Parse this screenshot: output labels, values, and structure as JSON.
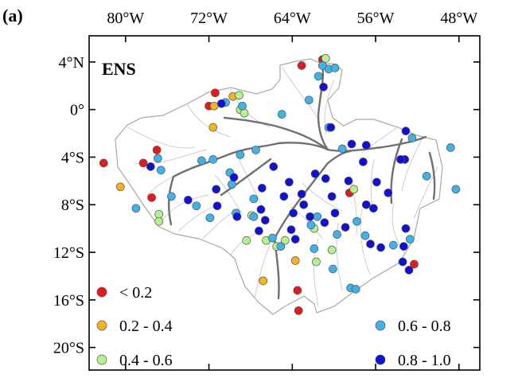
{
  "panel_label": "(a)",
  "metric": "ENS",
  "lon_ticks": [
    {
      "lon": -80,
      "label": "80°W"
    },
    {
      "lon": -72,
      "label": "72°W"
    },
    {
      "lon": -64,
      "label": "64°W"
    },
    {
      "lon": -56,
      "label": "56°W"
    },
    {
      "lon": -48,
      "label": "48°W"
    }
  ],
  "lat_ticks": [
    {
      "lat": 4,
      "label": "4°N"
    },
    {
      "lat": 0,
      "label": "0°"
    },
    {
      "lat": -4,
      "label": "4°S"
    },
    {
      "lat": -8,
      "label": "8°S"
    },
    {
      "lat": -12,
      "label": "12°S"
    },
    {
      "lat": -16,
      "label": "16°S"
    },
    {
      "lat": -20,
      "label": "20°S"
    }
  ],
  "extent": {
    "lon_min": -83.5,
    "lon_max": -46.0,
    "lat_min": -21.9,
    "lat_max": 6.2
  },
  "legend": [
    {
      "label": "< 0.2",
      "color": "#e41a1c"
    },
    {
      "label": "0.2 - 0.4",
      "color": "#f5b31c"
    },
    {
      "label": "0.4 - 0.6",
      "color": "#b8f08c"
    },
    {
      "label": "0.6 - 0.8",
      "color": "#3fb2e8"
    },
    {
      "label": "0.8 - 1.0",
      "color": "#1010d8"
    }
  ],
  "stations": [
    {
      "lon": -63.1,
      "lat": 3.7,
      "cls": 0
    },
    {
      "lon": -61.1,
      "lat": 4.2,
      "cls": 0
    },
    {
      "lon": -71.4,
      "lat": 1.4,
      "cls": 0
    },
    {
      "lon": -72.0,
      "lat": 0.3,
      "cls": 0
    },
    {
      "lon": -77.0,
      "lat": -3.4,
      "cls": 0
    },
    {
      "lon": -78.3,
      "lat": -4.5,
      "cls": 0
    },
    {
      "lon": -82.1,
      "lat": -4.5,
      "cls": 0
    },
    {
      "lon": -77.5,
      "lat": -7.4,
      "cls": 0
    },
    {
      "lon": -58.5,
      "lat": -7.0,
      "cls": 0
    },
    {
      "lon": -63.5,
      "lat": -15.2,
      "cls": 0
    },
    {
      "lon": -63.4,
      "lat": -16.9,
      "cls": 0
    },
    {
      "lon": -52.3,
      "lat": -13.0,
      "cls": 0
    },
    {
      "lon": -69.7,
      "lat": 1.1,
      "cls": 1
    },
    {
      "lon": -71.5,
      "lat": 0.3,
      "cls": 1
    },
    {
      "lon": -71.6,
      "lat": -1.5,
      "cls": 1
    },
    {
      "lon": -80.5,
      "lat": -6.5,
      "cls": 1
    },
    {
      "lon": -63.7,
      "lat": -12.7,
      "cls": 1
    },
    {
      "lon": -66.8,
      "lat": -14.4,
      "cls": 1
    },
    {
      "lon": -60.8,
      "lat": 4.3,
      "cls": 2
    },
    {
      "lon": -69.1,
      "lat": 1.2,
      "cls": 2
    },
    {
      "lon": -69.0,
      "lat": 0.0,
      "cls": 2
    },
    {
      "lon": -68.6,
      "lat": -0.3,
      "cls": 2
    },
    {
      "lon": -58.1,
      "lat": -6.7,
      "cls": 2
    },
    {
      "lon": -76.8,
      "lat": -8.8,
      "cls": 2
    },
    {
      "lon": -76.8,
      "lat": -9.4,
      "cls": 2
    },
    {
      "lon": -67.9,
      "lat": -8.9,
      "cls": 2
    },
    {
      "lon": -66.5,
      "lat": -11.0,
      "cls": 2
    },
    {
      "lon": -68.4,
      "lat": -11.0,
      "cls": 2
    },
    {
      "lon": -65.5,
      "lat": -11.5,
      "cls": 2
    },
    {
      "lon": -64.7,
      "lat": -11.0,
      "cls": 2
    },
    {
      "lon": -61.9,
      "lat": -10.0,
      "cls": 2
    },
    {
      "lon": -60.2,
      "lat": -11.8,
      "cls": 2
    },
    {
      "lon": -61.7,
      "lat": -12.8,
      "cls": 2
    },
    {
      "lon": -61.1,
      "lat": 3.7,
      "cls": 3
    },
    {
      "lon": -60.5,
      "lat": 3.4,
      "cls": 3
    },
    {
      "lon": -59.9,
      "lat": 3.5,
      "cls": 3
    },
    {
      "lon": -61.5,
      "lat": 2.8,
      "cls": 3
    },
    {
      "lon": -62.4,
      "lat": 0.8,
      "cls": 3
    },
    {
      "lon": -70.4,
      "lat": 0.6,
      "cls": 3
    },
    {
      "lon": -68.8,
      "lat": 0.3,
      "cls": 3
    },
    {
      "lon": -65.0,
      "lat": -0.4,
      "cls": 3
    },
    {
      "lon": -60.5,
      "lat": -1.5,
      "cls": 3
    },
    {
      "lon": -52.5,
      "lat": -2.4,
      "cls": 3
    },
    {
      "lon": -48.8,
      "lat": -3.2,
      "cls": 3
    },
    {
      "lon": -59.2,
      "lat": -3.3,
      "cls": 3
    },
    {
      "lon": -67.5,
      "lat": -3.4,
      "cls": 3
    },
    {
      "lon": -69.0,
      "lat": -3.8,
      "cls": 3
    },
    {
      "lon": -71.6,
      "lat": -4.2,
      "cls": 3
    },
    {
      "lon": -72.7,
      "lat": -4.3,
      "cls": 3
    },
    {
      "lon": -76.9,
      "lat": -4.1,
      "cls": 3
    },
    {
      "lon": -76.6,
      "lat": -5.1,
      "cls": 3
    },
    {
      "lon": -70.0,
      "lat": -5.3,
      "cls": 3
    },
    {
      "lon": -69.8,
      "lat": -6.3,
      "cls": 3
    },
    {
      "lon": -75.6,
      "lat": -7.3,
      "cls": 3
    },
    {
      "lon": -73.2,
      "lat": -8.1,
      "cls": 3
    },
    {
      "lon": -79.0,
      "lat": -8.3,
      "cls": 3
    },
    {
      "lon": -69.4,
      "lat": -8.7,
      "cls": 3
    },
    {
      "lon": -67.7,
      "lat": -7.5,
      "cls": 3
    },
    {
      "lon": -61.6,
      "lat": -9.0,
      "cls": 3
    },
    {
      "lon": -57.8,
      "lat": -9.4,
      "cls": 3
    },
    {
      "lon": -59.7,
      "lat": -10.5,
      "cls": 3
    },
    {
      "lon": -57.0,
      "lat": -10.6,
      "cls": 3
    },
    {
      "lon": -54.3,
      "lat": -11.4,
      "cls": 3
    },
    {
      "lon": -52.7,
      "lat": -10.9,
      "cls": 3
    },
    {
      "lon": -51.1,
      "lat": -5.6,
      "cls": 3
    },
    {
      "lon": -48.3,
      "lat": -6.7,
      "cls": 3
    },
    {
      "lon": -65.1,
      "lat": -11.5,
      "cls": 3
    },
    {
      "lon": -62.2,
      "lat": -9.7,
      "cls": 3
    },
    {
      "lon": -61.9,
      "lat": -11.7,
      "cls": 3
    },
    {
      "lon": -60.1,
      "lat": -13.4,
      "cls": 3
    },
    {
      "lon": -58.4,
      "lat": -15.0,
      "cls": 3
    },
    {
      "lon": -57.9,
      "lat": -15.1,
      "cls": 3
    },
    {
      "lon": -71.9,
      "lat": -9.1,
      "cls": 3
    },
    {
      "lon": -65.9,
      "lat": -10.8,
      "cls": 3
    },
    {
      "lon": -67.7,
      "lat": -9.0,
      "cls": 3
    },
    {
      "lon": -61.0,
      "lat": 1.9,
      "cls": 4
    },
    {
      "lon": -70.8,
      "lat": 0.5,
      "cls": 4
    },
    {
      "lon": -60.3,
      "lat": -1.5,
      "cls": 4
    },
    {
      "lon": -58.3,
      "lat": -2.9,
      "cls": 4
    },
    {
      "lon": -56.9,
      "lat": -3.0,
      "cls": 4
    },
    {
      "lon": -53.1,
      "lat": -1.8,
      "cls": 4
    },
    {
      "lon": -53.2,
      "lat": -4.2,
      "cls": 4
    },
    {
      "lon": -57.2,
      "lat": -4.4,
      "cls": 4
    },
    {
      "lon": -58.6,
      "lat": -6.0,
      "cls": 4
    },
    {
      "lon": -60.2,
      "lat": -7.3,
      "cls": 4
    },
    {
      "lon": -60.8,
      "lat": -5.8,
      "cls": 4
    },
    {
      "lon": -61.8,
      "lat": -5.4,
      "cls": 4
    },
    {
      "lon": -63.1,
      "lat": -7.1,
      "cls": 4
    },
    {
      "lon": -64.3,
      "lat": -6.1,
      "cls": 4
    },
    {
      "lon": -64.8,
      "lat": -7.3,
      "cls": 4
    },
    {
      "lon": -62.9,
      "lat": -8.0,
      "cls": 4
    },
    {
      "lon": -63.9,
      "lat": -8.7,
      "cls": 4
    },
    {
      "lon": -62.3,
      "lat": -9.0,
      "cls": 4
    },
    {
      "lon": -60.9,
      "lat": -9.5,
      "cls": 4
    },
    {
      "lon": -55.9,
      "lat": -6.1,
      "cls": 4
    },
    {
      "lon": -54.8,
      "lat": -7.0,
      "cls": 4
    },
    {
      "lon": -56.2,
      "lat": -8.3,
      "cls": 4
    },
    {
      "lon": -56.9,
      "lat": -8.0,
      "cls": 4
    },
    {
      "lon": -59.9,
      "lat": -8.7,
      "cls": 4
    },
    {
      "lon": -65.8,
      "lat": -4.8,
      "cls": 4
    },
    {
      "lon": -66.9,
      "lat": -6.6,
      "cls": 4
    },
    {
      "lon": -71.3,
      "lat": -6.7,
      "cls": 4
    },
    {
      "lon": -69.6,
      "lat": -5.7,
      "cls": 4
    },
    {
      "lon": -74.0,
      "lat": -7.6,
      "cls": 4
    },
    {
      "lon": -71.2,
      "lat": -8.1,
      "cls": 4
    },
    {
      "lon": -69.3,
      "lat": -9.0,
      "cls": 4
    },
    {
      "lon": -67.0,
      "lat": -8.4,
      "cls": 4
    },
    {
      "lon": -66.6,
      "lat": -9.3,
      "cls": 4
    },
    {
      "lon": -67.2,
      "lat": -10.2,
      "cls": 4
    },
    {
      "lon": -64.1,
      "lat": -10.1,
      "cls": 4
    },
    {
      "lon": -63.7,
      "lat": -10.9,
      "cls": 4
    },
    {
      "lon": -58.9,
      "lat": -9.9,
      "cls": 4
    },
    {
      "lon": -56.5,
      "lat": -11.3,
      "cls": 4
    },
    {
      "lon": -55.5,
      "lat": -11.6,
      "cls": 4
    },
    {
      "lon": -53.1,
      "lat": -10.0,
      "cls": 4
    },
    {
      "lon": -53.3,
      "lat": -11.5,
      "cls": 4
    },
    {
      "lon": -53.4,
      "lat": -12.8,
      "cls": 4
    },
    {
      "lon": -52.8,
      "lat": -13.5,
      "cls": 4
    },
    {
      "lon": -53.6,
      "lat": -4.2,
      "cls": 4
    },
    {
      "lon": -77.6,
      "lat": -4.8,
      "cls": 4
    }
  ]
}
